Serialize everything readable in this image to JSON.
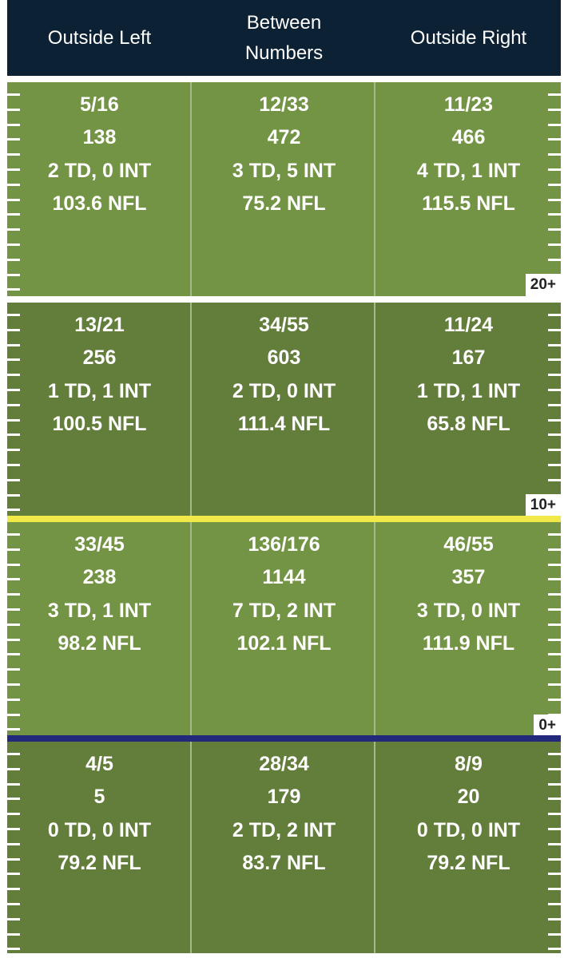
{
  "headers": {
    "outside_left": "Outside Left",
    "between_line1": "Between",
    "between_line2": "Numbers",
    "outside_right": "Outside Right"
  },
  "zones": [
    {
      "badge": "20+",
      "cells": [
        {
          "comp": "5/16",
          "yards": "138",
          "tdint": "2 TD, 0 INT",
          "rating": "103.6 NFL"
        },
        {
          "comp": "12/33",
          "yards": "472",
          "tdint": "3 TD, 5 INT",
          "rating": "75.2 NFL"
        },
        {
          "comp": "11/23",
          "yards": "466",
          "tdint": "4 TD, 1 INT",
          "rating": "115.5 NFL"
        }
      ]
    },
    {
      "badge": "10+",
      "cells": [
        {
          "comp": "13/21",
          "yards": "256",
          "tdint": "1 TD, 1 INT",
          "rating": "100.5 NFL"
        },
        {
          "comp": "34/55",
          "yards": "603",
          "tdint": "2 TD, 0 INT",
          "rating": "111.4 NFL"
        },
        {
          "comp": "11/24",
          "yards": "167",
          "tdint": "1 TD, 1 INT",
          "rating": "65.8 NFL"
        }
      ]
    },
    {
      "badge": "0+",
      "cells": [
        {
          "comp": "33/45",
          "yards": "238",
          "tdint": "3 TD, 1 INT",
          "rating": "98.2 NFL"
        },
        {
          "comp": "136/176",
          "yards": "1144",
          "tdint": "7 TD, 2 INT",
          "rating": "102.1 NFL"
        },
        {
          "comp": "46/55",
          "yards": "357",
          "tdint": "3 TD, 0 INT",
          "rating": "111.9 NFL"
        }
      ]
    },
    {
      "badge": "",
      "cells": [
        {
          "comp": "4/5",
          "yards": "5",
          "tdint": "0 TD, 0 INT",
          "rating": "79.2 NFL"
        },
        {
          "comp": "28/34",
          "yards": "179",
          "tdint": "2 TD, 2 INT",
          "rating": "83.7 NFL"
        },
        {
          "comp": "8/9",
          "yards": "20",
          "tdint": "0 TD, 0 INT",
          "rating": "79.2 NFL"
        }
      ]
    }
  ],
  "colors": {
    "header_bg": "#0d2135",
    "field_light": "#739444",
    "field_dark": "#637d3b",
    "first_down_line": "#f1e84a",
    "line_of_scrimmage": "#22287a",
    "yard_line": "#ffffff"
  }
}
